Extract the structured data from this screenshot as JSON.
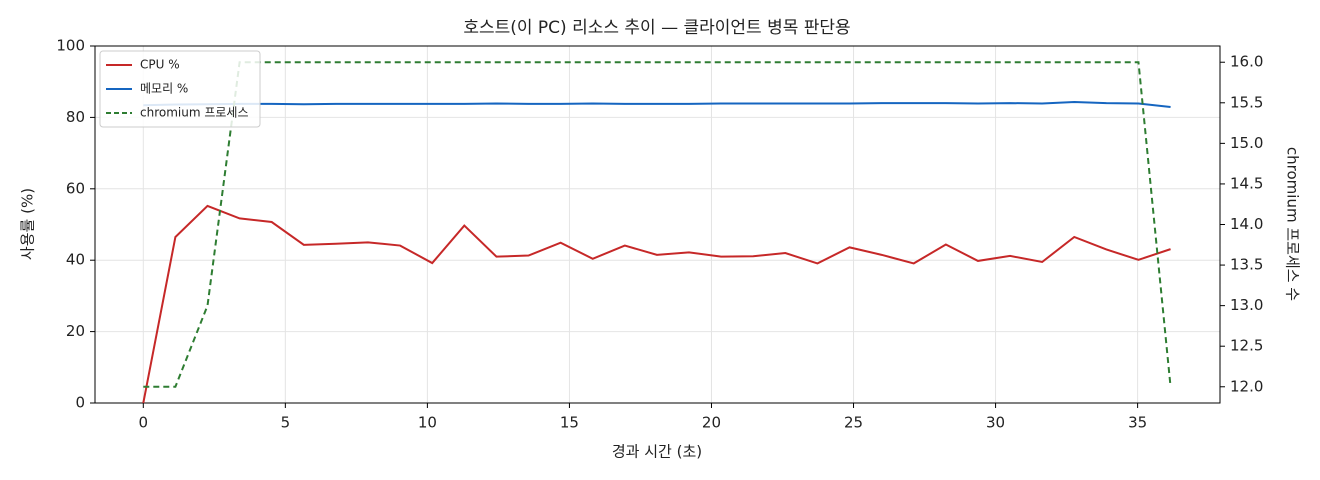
{
  "chart_data": {
    "type": "line",
    "title": "호스트(이 PC) 리소스 추이 — 클라이언트 병목 판단용",
    "xlabel": "경과 시간 (초)",
    "ylabel": "사용률 (%)",
    "y2label": "chromium 프로세스 수",
    "x": [
      0,
      1.13,
      2.26,
      3.39,
      4.52,
      5.65,
      6.78,
      7.91,
      9.04,
      10.17,
      11.3,
      12.43,
      13.56,
      14.69,
      15.82,
      16.95,
      18.08,
      19.21,
      20.34,
      21.47,
      22.6,
      23.73,
      24.86,
      25.99,
      27.12,
      28.25,
      29.38,
      30.51,
      31.64,
      32.77,
      33.9,
      35.03,
      36.16
    ],
    "series": [
      {
        "name": "CPU %",
        "color": "#c62828",
        "dash": false,
        "values": [
          0,
          46.5,
          55.2,
          51.7,
          50.7,
          44.3,
          44.6,
          45.0,
          44.1,
          39.2,
          49.7,
          41.0,
          41.3,
          44.9,
          40.4,
          44.1,
          41.5,
          42.2,
          41.0,
          41.1,
          42.0,
          39.1,
          43.6,
          41.5,
          39.1,
          44.4,
          39.8,
          41.2,
          39.5,
          46.5,
          43.0,
          40.1,
          43.1
        ]
      },
      {
        "name": "메모리 %",
        "color": "#1565c0",
        "dash": false,
        "values": [
          83.4,
          83.6,
          83.7,
          83.8,
          83.8,
          83.7,
          83.8,
          83.8,
          83.8,
          83.8,
          83.8,
          83.9,
          83.8,
          83.8,
          83.9,
          83.8,
          83.8,
          83.8,
          83.9,
          83.9,
          83.9,
          83.9,
          83.9,
          84.0,
          84.0,
          84.0,
          83.9,
          84.0,
          83.9,
          84.3,
          84.0,
          83.9,
          82.9
        ]
      },
      {
        "name": "chromium 프로세스",
        "color": "#2e7d32",
        "dash": true,
        "axis": "y2",
        "values": [
          12,
          12,
          13,
          16,
          16,
          16,
          16,
          16,
          16,
          16,
          16,
          16,
          16,
          16,
          16,
          16,
          16,
          16,
          16,
          16,
          16,
          16,
          16,
          16,
          16,
          16,
          16,
          16,
          16,
          16,
          16,
          16,
          12
        ]
      }
    ],
    "xlim": [
      -1.7,
      37.9
    ],
    "xticks": [
      0,
      5,
      10,
      15,
      20,
      25,
      30,
      35
    ],
    "ylim": [
      0,
      100
    ],
    "yticks": [
      0,
      20,
      40,
      60,
      80,
      100
    ],
    "y2lim": [
      11.8,
      16.2
    ],
    "y2ticks": [
      {
        "value": 12,
        "label": "12.0"
      },
      {
        "value": 12.5,
        "label": "12.5"
      },
      {
        "value": 13,
        "label": "13.0"
      },
      {
        "value": 13.5,
        "label": "13.5"
      },
      {
        "value": 14,
        "label": "14.0"
      },
      {
        "value": 14.5,
        "label": "14.5"
      },
      {
        "value": 15,
        "label": "15.0"
      },
      {
        "value": 15.5,
        "label": "15.5"
      },
      {
        "value": 16,
        "label": "16.0"
      }
    ],
    "grid": true,
    "legend": "upper-left"
  }
}
